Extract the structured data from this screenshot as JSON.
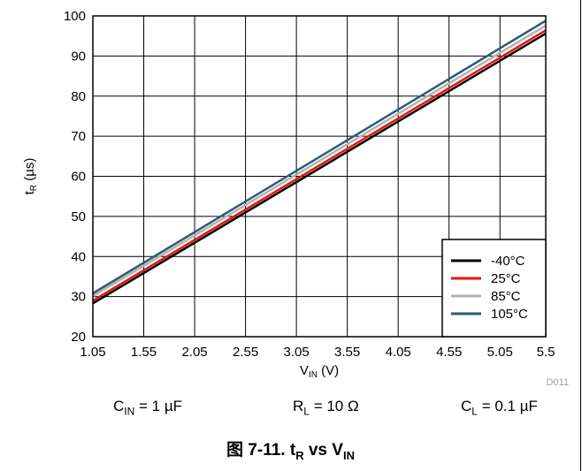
{
  "chart_data": {
    "type": "line",
    "xlabel": {
      "main": "V",
      "sub": "IN",
      "unit": "(V)"
    },
    "ylabel": {
      "main": "t",
      "sub": "R",
      "unit": "(µs)"
    },
    "xlim": [
      1.05,
      5.5
    ],
    "ylim": [
      20,
      100
    ],
    "x_ticks": [
      "1.05",
      "1.55",
      "2.05",
      "2.55",
      "3.05",
      "3.55",
      "4.05",
      "4.55",
      "5.05",
      "5.5"
    ],
    "y_ticks": [
      "20",
      "30",
      "40",
      "50",
      "60",
      "70",
      "80",
      "90",
      "100"
    ],
    "grid": true,
    "legend_position": "bottom-right",
    "series": [
      {
        "name": "-40°C",
        "color": "#000000",
        "x": [
          1.05,
          5.5
        ],
        "y": [
          28.3,
          95.6
        ]
      },
      {
        "name": "25°C",
        "color": "#e8140f",
        "x": [
          1.05,
          5.5
        ],
        "y": [
          29.0,
          96.4
        ]
      },
      {
        "name": "85°C",
        "color": "#b2b2b2",
        "x": [
          1.05,
          5.5
        ],
        "y": [
          30.1,
          97.6
        ]
      },
      {
        "name": "105°C",
        "color": "#2e5a73",
        "x": [
          1.05,
          5.5
        ],
        "y": [
          30.8,
          98.8
        ]
      }
    ],
    "watermark": "D011"
  },
  "conditions": [
    {
      "main": "C",
      "sub": "IN",
      "rest": " = 1 µF"
    },
    {
      "main": "R",
      "sub": "L",
      "rest": " = 10 Ω"
    },
    {
      "main": "C",
      "sub": "L",
      "rest": " = 0.1 µF"
    }
  ],
  "caption": {
    "prefix": "图 7-11. t",
    "sub1": "R",
    "mid": " vs V",
    "sub2": "IN"
  }
}
